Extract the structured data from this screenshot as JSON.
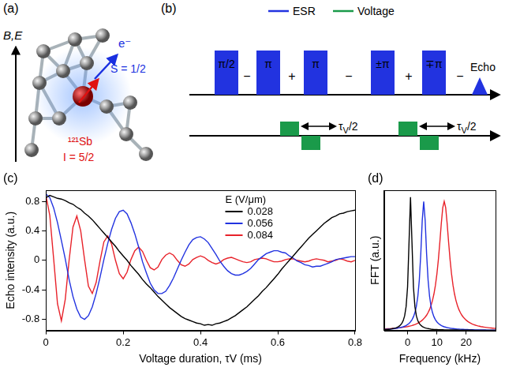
{
  "diagram_a": {
    "panel": "(a)",
    "axis_label": "B,E",
    "nucleus": "¹²¹Sb",
    "nuclear_spin": "I = 5/2",
    "electron": "e⁻",
    "electron_spin": "S = 1/2"
  },
  "diagram_b": {
    "panel": "(b)",
    "key": [
      {
        "name": "ESR",
        "color": "#2233e0"
      },
      {
        "name": "Voltage",
        "color": "#1a9a4a"
      }
    ],
    "pulses": [
      "π/2",
      "π",
      "π",
      "±π",
      "∓π"
    ],
    "signs": [
      "−",
      "+",
      "−",
      "+",
      "−"
    ],
    "echo": "Echo",
    "delay": "τV/2"
  },
  "chart_data": [
    {
      "panel": "(c)",
      "type": "line",
      "x_label": "Voltage duration, τV (ms)",
      "y_label": "Echo intensity (a.u.)",
      "legend_title": "E (V/μm)",
      "legend": "top",
      "grid": false,
      "xlim": [
        0,
        0.8
      ],
      "xticks": [
        0,
        0.2,
        0.4,
        0.6,
        0.8
      ],
      "ylim": [
        -0.95,
        0.95
      ],
      "yticks": [
        -0.8,
        -0.4,
        0,
        0.4,
        0.8
      ],
      "x": [
        0,
        0.01,
        0.02,
        0.03,
        0.04,
        0.05,
        0.06,
        0.07,
        0.08,
        0.09,
        0.1,
        0.11,
        0.12,
        0.13,
        0.14,
        0.15,
        0.16,
        0.17,
        0.18,
        0.19,
        0.2,
        0.21,
        0.22,
        0.23,
        0.24,
        0.25,
        0.26,
        0.27,
        0.28,
        0.29,
        0.3,
        0.31,
        0.32,
        0.33,
        0.34,
        0.35,
        0.36,
        0.37,
        0.38,
        0.39,
        0.4,
        0.41,
        0.42,
        0.43,
        0.44,
        0.45,
        0.46,
        0.47,
        0.48,
        0.49,
        0.5,
        0.51,
        0.52,
        0.53,
        0.54,
        0.55,
        0.56,
        0.57,
        0.58,
        0.59,
        0.6,
        0.61,
        0.62,
        0.63,
        0.64,
        0.65,
        0.66,
        0.67,
        0.68,
        0.69,
        0.7,
        0.71,
        0.72,
        0.73,
        0.74,
        0.75,
        0.76,
        0.77,
        0.78,
        0.79,
        0.8
      ],
      "series": [
        {
          "name": "0.028",
          "color": "#000000",
          "values": [
            0.85,
            0.88,
            0.86,
            0.84,
            0.83,
            0.81,
            0.78,
            0.76,
            0.72,
            0.69,
            0.64,
            0.6,
            0.55,
            0.49,
            0.43,
            0.37,
            0.31,
            0.25,
            0.19,
            0.12,
            0.06,
            0.0,
            -0.07,
            -0.13,
            -0.19,
            -0.26,
            -0.32,
            -0.37,
            -0.43,
            -0.49,
            -0.54,
            -0.59,
            -0.64,
            -0.68,
            -0.72,
            -0.76,
            -0.79,
            -0.81,
            -0.83,
            -0.85,
            -0.86,
            -0.88,
            -0.87,
            -0.88,
            -0.86,
            -0.85,
            -0.83,
            -0.81,
            -0.78,
            -0.75,
            -0.71,
            -0.67,
            -0.63,
            -0.58,
            -0.53,
            -0.48,
            -0.42,
            -0.37,
            -0.31,
            -0.25,
            -0.19,
            -0.12,
            -0.06,
            0.0,
            0.06,
            0.12,
            0.18,
            0.24,
            0.3,
            0.35,
            0.4,
            0.45,
            0.5,
            0.54,
            0.58,
            0.6,
            0.63,
            0.64,
            0.66,
            0.67,
            0.68
          ]
        },
        {
          "name": "0.056",
          "color": "#2233e0",
          "values": [
            0.9,
            0.85,
            0.71,
            0.51,
            0.27,
            0.02,
            -0.26,
            -0.49,
            -0.66,
            -0.77,
            -0.8,
            -0.75,
            -0.63,
            -0.45,
            -0.23,
            0.01,
            0.23,
            0.42,
            0.57,
            0.66,
            0.68,
            0.63,
            0.51,
            0.36,
            0.18,
            -0.02,
            -0.17,
            -0.31,
            -0.4,
            -0.45,
            -0.45,
            -0.42,
            -0.34,
            -0.24,
            -0.12,
            0.0,
            0.11,
            0.21,
            0.28,
            0.31,
            0.32,
            0.29,
            0.24,
            0.16,
            0.08,
            -0.01,
            -0.08,
            -0.14,
            -0.18,
            -0.2,
            -0.2,
            -0.18,
            -0.15,
            -0.11,
            -0.05,
            0.01,
            0.05,
            0.09,
            0.11,
            0.13,
            0.13,
            0.11,
            0.1,
            0.06,
            0.03,
            -0.01,
            -0.03,
            -0.06,
            -0.07,
            -0.09,
            -0.08,
            -0.08,
            -0.06,
            -0.04,
            -0.02,
            0.01,
            0.02,
            0.03,
            0.04,
            0.05,
            0.05
          ]
        },
        {
          "name": "0.084",
          "color": "#e8222a",
          "values": [
            0.88,
            0.61,
            0.02,
            -0.59,
            -0.82,
            -0.53,
            0.0,
            0.45,
            0.6,
            0.4,
            0.01,
            -0.35,
            -0.45,
            -0.3,
            -0.01,
            0.25,
            0.33,
            0.22,
            0.0,
            -0.18,
            -0.25,
            -0.16,
            0.01,
            0.13,
            0.18,
            0.12,
            0.0,
            -0.1,
            -0.13,
            -0.09,
            0.01,
            0.07,
            0.1,
            0.07,
            0.0,
            -0.06,
            -0.08,
            -0.05,
            0.01,
            0.04,
            0.06,
            0.04,
            0.0,
            -0.03,
            -0.05,
            -0.03,
            0.01,
            0.03,
            0.04,
            0.02,
            0.0,
            -0.02,
            -0.03,
            -0.02,
            0.01,
            0.02,
            0.03,
            0.02,
            0.0,
            -0.02,
            -0.02,
            -0.01,
            0.01,
            0.02,
            0.02,
            0.0,
            -0.01,
            -0.02,
            -0.01,
            0.01,
            0.02,
            0.01,
            0.0,
            -0.02,
            -0.01,
            0.0,
            0.02,
            0.01,
            -0.01,
            -0.02,
            0.0
          ]
        }
      ]
    },
    {
      "panel": "(d)",
      "type": "line",
      "x_label": "Frequency (kHz)",
      "y_label": "FFT (a.u.)",
      "grid": false,
      "tick_labels": "x",
      "xlim": [
        -8,
        30
      ],
      "xticks": [
        0,
        10,
        20
      ],
      "ylim": [
        0,
        1
      ],
      "x": [
        -8,
        -7.5,
        -7,
        -6.5,
        -6,
        -5.5,
        -5,
        -4.5,
        -4,
        -3.5,
        -3,
        -2.5,
        -2,
        -1.5,
        -1,
        -0.5,
        0,
        0.5,
        1,
        1.5,
        2,
        2.5,
        3,
        3.5,
        4,
        4.5,
        5,
        5.5,
        6,
        6.5,
        7,
        7.5,
        8,
        8.5,
        9,
        9.5,
        10,
        10.5,
        11,
        11.5,
        12,
        12.5,
        13,
        13.5,
        14,
        14.5,
        15,
        15.5,
        16,
        16.5,
        17,
        17.5,
        18,
        18.5,
        19,
        19.5,
        20,
        20.5,
        21,
        21.5,
        22,
        22.5,
        23,
        23.5,
        24,
        24.5,
        25,
        25.5,
        26,
        26.5,
        27,
        27.5,
        28,
        28.5,
        29,
        29.5,
        30
      ],
      "series": [
        {
          "name": "0.028",
          "color": "#000000",
          "values": [
            0.006,
            0.006,
            0.007,
            0.008,
            0.009,
            0.011,
            0.013,
            0.015,
            0.018,
            0.022,
            0.028,
            0.037,
            0.049,
            0.069,
            0.104,
            0.17,
            0.31,
            0.63,
            0.95,
            0.63,
            0.31,
            0.17,
            0.104,
            0.069,
            0.049,
            0.037,
            0.028,
            0.022,
            0.018,
            0.015,
            0.013,
            0.011,
            0.009,
            0.008,
            0.007,
            0.006,
            0.006,
            0.005,
            0.005,
            0.005,
            0.005,
            0.004,
            0.004,
            0.004,
            0.004,
            0.003,
            0.003,
            0.003,
            0.003,
            0.003,
            0.003,
            0.002,
            0.002,
            0.002,
            0.002,
            0.002,
            0.002,
            0.002,
            0.002,
            0.002,
            0.002,
            0.001,
            0.001,
            0.001,
            0.001,
            0.001,
            0.001,
            0.001,
            0.001,
            0.001,
            0.001,
            0.001,
            0.001,
            0.001,
            0.001,
            0.001,
            0.001
          ]
        },
        {
          "name": "0.056",
          "color": "#2233e0",
          "values": [
            0.0072,
            0.0078,
            0.0084,
            0.0091,
            0.0099,
            0.0108,
            0.0119,
            0.0131,
            0.0144,
            0.016,
            0.018,
            0.02,
            0.023,
            0.026,
            0.03,
            0.035,
            0.042,
            0.05,
            0.061,
            0.076,
            0.097,
            0.127,
            0.172,
            0.243,
            0.359,
            0.543,
            0.784,
            0.92,
            0.784,
            0.543,
            0.359,
            0.243,
            0.172,
            0.127,
            0.097,
            0.076,
            0.061,
            0.05,
            0.042,
            0.035,
            0.03,
            0.026,
            0.023,
            0.02,
            0.018,
            0.016,
            0.0144,
            0.0131,
            0.0119,
            0.0108,
            0.0099,
            0.0091,
            0.0084,
            0.0078,
            0.0072,
            0.0067,
            0.0063,
            0.0059,
            0.0055,
            0.0052,
            0.0048,
            0.0046,
            0.0043,
            0.0041,
            0.0039,
            0.0037,
            0.0035,
            0.0033,
            0.0031,
            0.003,
            0.0029,
            0.0027,
            0.0026,
            0.0025,
            0.0024,
            0.0023,
            0.0022
          ]
        },
        {
          "name": "0.084",
          "color": "#e8222a",
          "values": [
            0.0105,
            0.011,
            0.0116,
            0.0122,
            0.0128,
            0.0135,
            0.0143,
            0.0152,
            0.0161,
            0.0171,
            0.0182,
            0.0194,
            0.0207,
            0.0222,
            0.0238,
            0.0256,
            0.0276,
            0.03,
            0.0325,
            0.0354,
            0.0387,
            0.0424,
            0.0469,
            0.052,
            0.058,
            0.065,
            0.073,
            0.083,
            0.095,
            0.109,
            0.127,
            0.149,
            0.178,
            0.214,
            0.261,
            0.322,
            0.402,
            0.504,
            0.628,
            0.762,
            0.875,
            0.92,
            0.875,
            0.762,
            0.628,
            0.504,
            0.402,
            0.322,
            0.261,
            0.214,
            0.178,
            0.149,
            0.127,
            0.109,
            0.095,
            0.083,
            0.073,
            0.065,
            0.058,
            0.052,
            0.0469,
            0.0424,
            0.0387,
            0.0354,
            0.0325,
            0.03,
            0.0276,
            0.0256,
            0.0238,
            0.0222,
            0.0207,
            0.0194,
            0.0182,
            0.0171,
            0.0161,
            0.0152,
            0.0143
          ]
        }
      ]
    }
  ]
}
